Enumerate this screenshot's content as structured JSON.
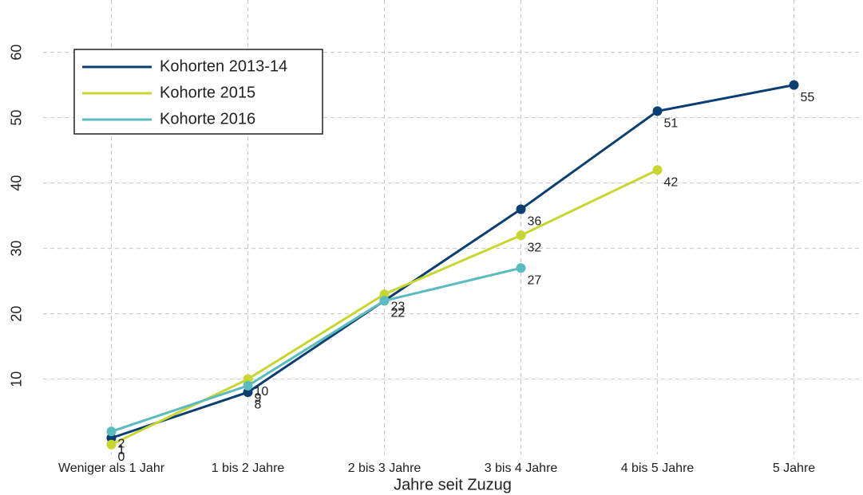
{
  "chart_data": {
    "type": "line",
    "x_label": "Jahre seit Zuzug",
    "categories": [
      "Weniger als 1 Jahr",
      "1 bis 2 Jahre",
      "2 bis 3 Jahre",
      "3 bis 4 Jahre",
      "4 bis 5 Jahre",
      "5 Jahre"
    ],
    "series": [
      {
        "name": "Kohorten 2013-14",
        "color": "#0b3f73",
        "values": [
          1,
          8,
          22,
          36,
          51,
          55
        ]
      },
      {
        "name": "Kohorte 2015",
        "color": "#c8d630",
        "values": [
          0,
          10,
          23,
          32,
          42,
          null
        ]
      },
      {
        "name": "Kohorte 2016",
        "color": "#5bbcbf",
        "values": [
          2,
          9,
          22,
          27,
          null,
          null
        ]
      }
    ],
    "ylim": [
      -1.5,
      68
    ],
    "yticks": [
      10,
      20,
      30,
      40,
      50,
      60
    ],
    "grid": true,
    "legend": "upper left"
  }
}
